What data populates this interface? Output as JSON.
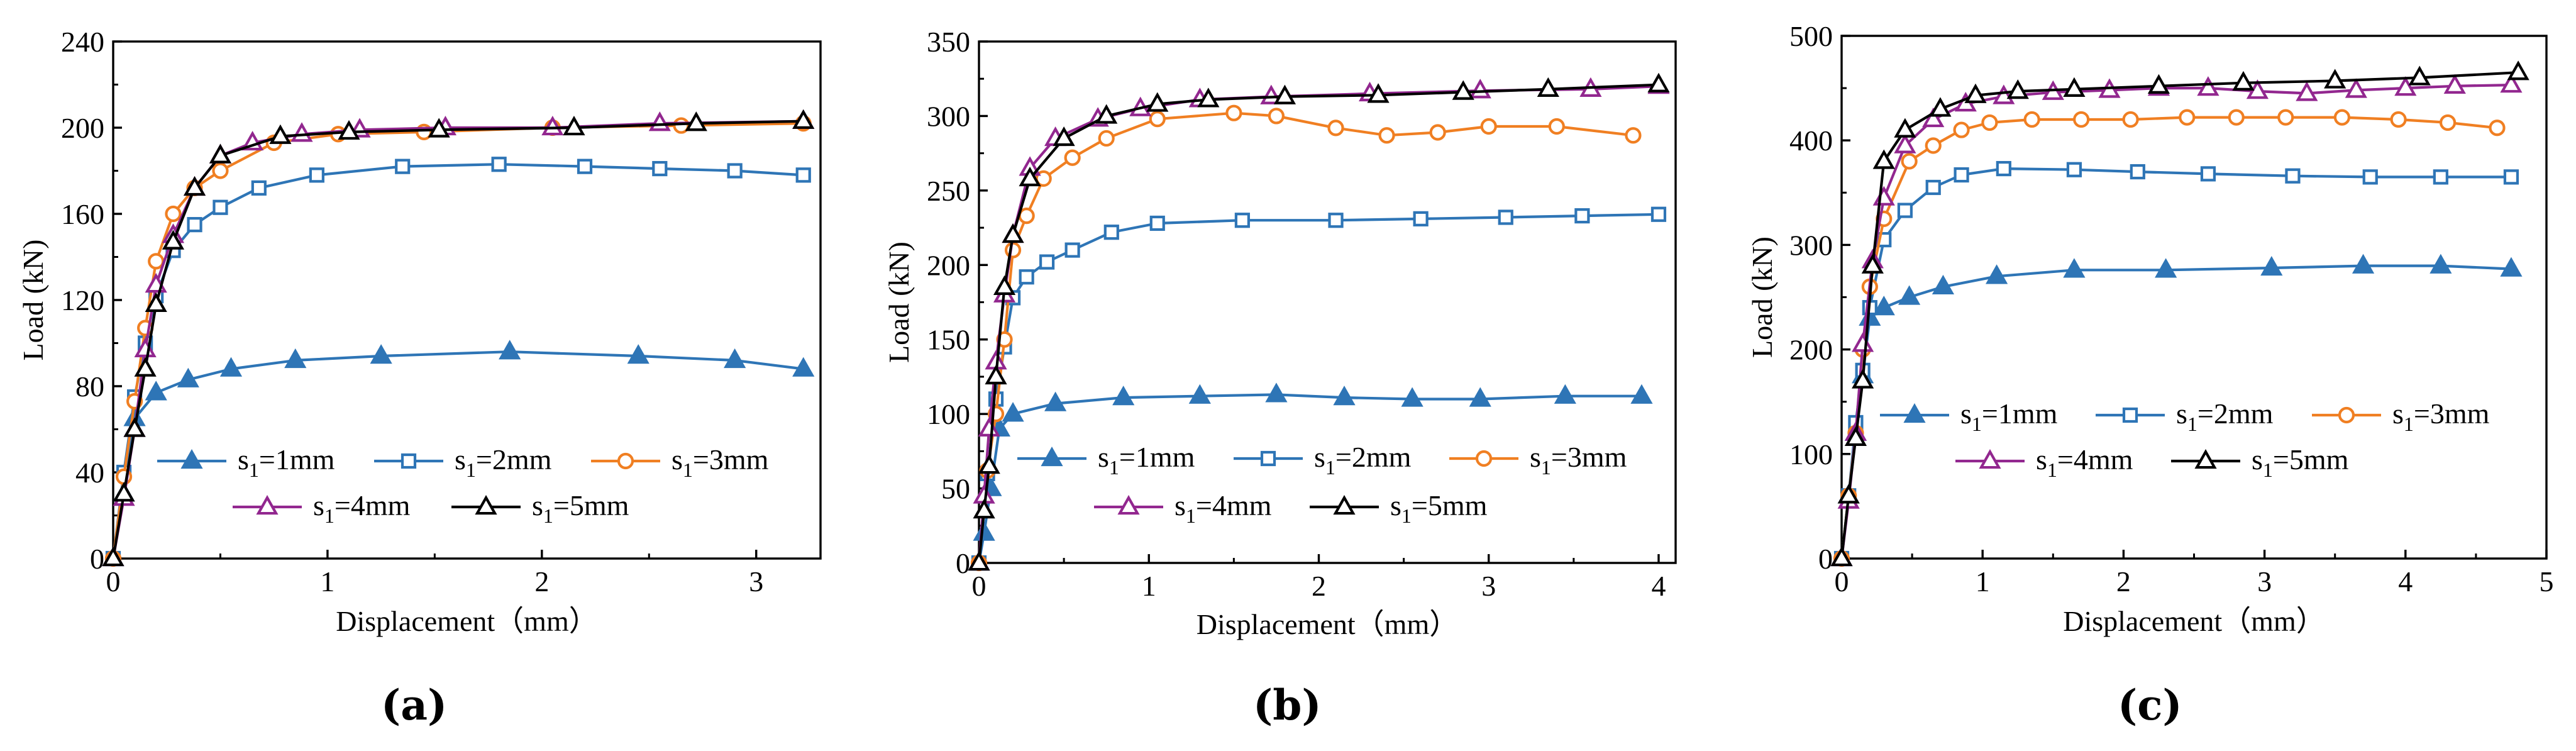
{
  "panel_labels": [
    "(a)",
    "(b)",
    "(c)"
  ],
  "chart_data": [
    {
      "type": "line",
      "xlabel": "Displacement（mm）",
      "ylabel": "Load (kN)",
      "xlim": [
        0,
        3.3
      ],
      "ylim": [
        0,
        240
      ],
      "xticks": [
        0,
        1,
        2,
        3
      ],
      "yticks": [
        0,
        40,
        80,
        120,
        160,
        200,
        240
      ],
      "grid": false,
      "legend": "inside-lower-right",
      "series": [
        {
          "name": "s1=1mm",
          "color": "#2e75b6",
          "marker": "triangle-filled",
          "x": [
            0,
            0.05,
            0.1,
            0.2,
            0.35,
            0.55,
            0.85,
            1.25,
            1.85,
            2.45,
            2.9,
            3.22
          ],
          "y": [
            0,
            30,
            65,
            77,
            83,
            88,
            92,
            94,
            96,
            94,
            92,
            88
          ]
        },
        {
          "name": "s1=2mm",
          "color": "#2e75b6",
          "marker": "square-open",
          "x": [
            0,
            0.05,
            0.1,
            0.15,
            0.2,
            0.28,
            0.38,
            0.5,
            0.68,
            0.95,
            1.35,
            1.8,
            2.2,
            2.55,
            2.9,
            3.22
          ],
          "y": [
            0,
            40,
            75,
            100,
            122,
            143,
            155,
            163,
            172,
            178,
            182,
            183,
            182,
            181,
            180,
            178
          ]
        },
        {
          "name": "s1=3mm",
          "color": "#f07f22",
          "marker": "circle-open",
          "x": [
            0,
            0.05,
            0.1,
            0.15,
            0.2,
            0.28,
            0.38,
            0.5,
            0.75,
            1.05,
            1.45,
            2.05,
            2.65,
            3.22
          ],
          "y": [
            0,
            38,
            73,
            107,
            138,
            160,
            172,
            180,
            193,
            197,
            198,
            200,
            201,
            202
          ]
        },
        {
          "name": "s1=4mm",
          "color": "#92278f",
          "marker": "triangle-open",
          "x": [
            0,
            0.05,
            0.1,
            0.15,
            0.2,
            0.28,
            0.38,
            0.5,
            0.65,
            0.88,
            1.15,
            1.55,
            2.05,
            2.55,
            3.22
          ],
          "y": [
            0,
            28,
            60,
            97,
            127,
            150,
            172,
            187,
            193,
            197,
            199,
            200,
            200,
            202,
            203
          ]
        },
        {
          "name": "s1=5mm",
          "color": "#000000",
          "marker": "triangle-open",
          "x": [
            0,
            0.05,
            0.1,
            0.15,
            0.2,
            0.28,
            0.38,
            0.5,
            0.78,
            1.1,
            1.52,
            2.15,
            2.72,
            3.22
          ],
          "y": [
            0,
            30,
            60,
            88,
            118,
            147,
            172,
            187,
            196,
            198,
            199,
            200,
            202,
            203
          ]
        }
      ]
    },
    {
      "type": "line",
      "xlabel": "Displacement（mm）",
      "ylabel": "Load (kN)",
      "xlim": [
        0,
        4.1
      ],
      "ylim": [
        0,
        350
      ],
      "xticks": [
        0,
        1,
        2,
        3,
        4
      ],
      "yticks": [
        0,
        50,
        100,
        150,
        200,
        250,
        300,
        350
      ],
      "grid": false,
      "legend": "inside-lower-right",
      "series": [
        {
          "name": "s1=1mm",
          "color": "#2e75b6",
          "marker": "triangle-filled",
          "x": [
            0,
            0.03,
            0.07,
            0.12,
            0.2,
            0.45,
            0.85,
            1.3,
            1.75,
            2.15,
            2.55,
            2.95,
            3.45,
            3.9
          ],
          "y": [
            0,
            20,
            50,
            90,
            100,
            107,
            111,
            112,
            113,
            111,
            110,
            110,
            112,
            112
          ]
        },
        {
          "name": "s1=2mm",
          "color": "#2e75b6",
          "marker": "square-open",
          "x": [
            0,
            0.05,
            0.1,
            0.15,
            0.2,
            0.28,
            0.4,
            0.55,
            0.78,
            1.05,
            1.55,
            2.1,
            2.6,
            3.1,
            3.55,
            4.0
          ],
          "y": [
            0,
            60,
            110,
            145,
            178,
            192,
            202,
            210,
            222,
            228,
            230,
            230,
            231,
            232,
            233,
            234
          ]
        },
        {
          "name": "s1=3mm",
          "color": "#f07f22",
          "marker": "circle-open",
          "x": [
            0,
            0.05,
            0.1,
            0.15,
            0.2,
            0.28,
            0.38,
            0.55,
            0.75,
            1.05,
            1.5,
            1.75,
            2.1,
            2.4,
            2.7,
            3.0,
            3.4,
            3.85
          ],
          "y": [
            0,
            62,
            100,
            150,
            210,
            233,
            258,
            272,
            285,
            298,
            302,
            300,
            292,
            287,
            289,
            293,
            293,
            287
          ]
        },
        {
          "name": "s1=4mm",
          "color": "#92278f",
          "marker": "triangle-open",
          "x": [
            0,
            0.03,
            0.06,
            0.1,
            0.15,
            0.2,
            0.3,
            0.45,
            0.7,
            0.95,
            1.3,
            1.72,
            2.3,
            2.95,
            3.6,
            4.0
          ],
          "y": [
            0,
            45,
            90,
            135,
            180,
            220,
            265,
            285,
            298,
            305,
            311,
            313,
            315,
            317,
            318,
            320
          ]
        },
        {
          "name": "s1=5mm",
          "color": "#000000",
          "marker": "triangle-open",
          "x": [
            0,
            0.03,
            0.06,
            0.1,
            0.15,
            0.2,
            0.3,
            0.5,
            0.75,
            1.05,
            1.35,
            1.8,
            2.35,
            2.85,
            3.35,
            4.0
          ],
          "y": [
            0,
            35,
            65,
            125,
            185,
            220,
            258,
            285,
            300,
            308,
            311,
            313,
            314,
            316,
            318,
            321
          ]
        }
      ]
    },
    {
      "type": "line",
      "xlabel": "Displacement（mm）",
      "ylabel": "Load (kN)",
      "xlim": [
        0,
        5
      ],
      "ylim": [
        0,
        500
      ],
      "xticks": [
        0,
        1,
        2,
        3,
        4,
        5
      ],
      "yticks": [
        0,
        100,
        200,
        300,
        400,
        500
      ],
      "grid": false,
      "legend": "inside-lower-right",
      "series": [
        {
          "name": "s1=1mm",
          "color": "#2e75b6",
          "marker": "triangle-filled",
          "x": [
            0,
            0.05,
            0.1,
            0.15,
            0.2,
            0.3,
            0.48,
            0.72,
            1.1,
            1.65,
            2.3,
            3.05,
            3.7,
            4.25,
            4.75
          ],
          "y": [
            0,
            60,
            120,
            175,
            230,
            240,
            250,
            260,
            270,
            276,
            276,
            278,
            280,
            280,
            277
          ]
        },
        {
          "name": "s1=2mm",
          "color": "#2e75b6",
          "marker": "square-open",
          "x": [
            0,
            0.05,
            0.1,
            0.15,
            0.2,
            0.3,
            0.45,
            0.65,
            0.85,
            1.15,
            1.65,
            2.1,
            2.6,
            3.2,
            3.75,
            4.25,
            4.75
          ],
          "y": [
            0,
            60,
            130,
            180,
            240,
            305,
            333,
            355,
            367,
            373,
            372,
            370,
            368,
            366,
            365,
            365,
            365
          ]
        },
        {
          "name": "s1=3mm",
          "color": "#f07f22",
          "marker": "circle-open",
          "x": [
            0,
            0.05,
            0.1,
            0.15,
            0.2,
            0.3,
            0.48,
            0.65,
            0.85,
            1.05,
            1.35,
            1.7,
            2.05,
            2.45,
            2.8,
            3.15,
            3.55,
            3.95,
            4.3,
            4.65
          ],
          "y": [
            0,
            60,
            120,
            200,
            260,
            325,
            380,
            395,
            410,
            417,
            420,
            420,
            420,
            422,
            422,
            422,
            422,
            420,
            417,
            412
          ]
        },
        {
          "name": "s1=4mm",
          "color": "#92278f",
          "marker": "triangle-open",
          "x": [
            0,
            0.05,
            0.1,
            0.15,
            0.22,
            0.3,
            0.45,
            0.65,
            0.88,
            1.15,
            1.5,
            1.9,
            2.25,
            2.6,
            2.95,
            3.3,
            3.65,
            4.0,
            4.35,
            4.75
          ],
          "y": [
            0,
            55,
            120,
            205,
            285,
            345,
            395,
            420,
            435,
            442,
            446,
            448,
            450,
            450,
            447,
            445,
            448,
            450,
            452,
            453
          ]
        },
        {
          "name": "s1=5mm",
          "color": "#000000",
          "marker": "triangle-open",
          "x": [
            0,
            0.05,
            0.1,
            0.15,
            0.22,
            0.3,
            0.45,
            0.7,
            0.95,
            1.25,
            1.65,
            2.25,
            2.85,
            3.5,
            4.1,
            4.8
          ],
          "y": [
            0,
            60,
            115,
            170,
            280,
            380,
            410,
            430,
            443,
            447,
            449,
            452,
            455,
            457,
            460,
            465
          ]
        }
      ]
    }
  ]
}
